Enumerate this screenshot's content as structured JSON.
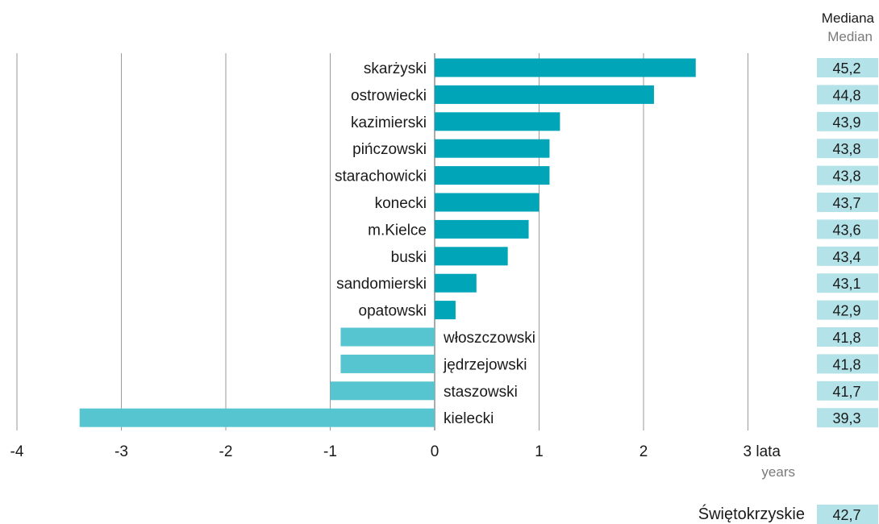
{
  "chart_data": {
    "type": "bar",
    "orientation": "horizontal",
    "categories": [
      "skarżyski",
      "ostrowiecki",
      "kazimierski",
      "pińczowski",
      "starachowicki",
      "konecki",
      "m.Kielce",
      "buski",
      "sandomierski",
      "opatowski",
      "włoszczowski",
      "jędrzejowski",
      "staszowski",
      "kielecki"
    ],
    "values": [
      2.5,
      2.1,
      1.2,
      1.1,
      1.1,
      1.0,
      0.9,
      0.7,
      0.4,
      0.2,
      -0.9,
      -0.9,
      -1.0,
      -3.4
    ],
    "medians": [
      "45,2",
      "44,8",
      "43,9",
      "43,8",
      "43,8",
      "43,7",
      "43,6",
      "43,4",
      "43,1",
      "42,9",
      "41,8",
      "41,8",
      "41,7",
      "39,3"
    ],
    "xlim": [
      -4,
      3
    ],
    "x_ticks": [
      "-4",
      "-3",
      "-2",
      "-1",
      "0",
      "1",
      "2",
      "3 lata"
    ],
    "x_unit_secondary": "years",
    "median_header": "Mediana",
    "median_header_secondary": "Median",
    "grid": true,
    "colors": {
      "positive": "#00a6b8",
      "negative": "#56c5cf",
      "median_box": "#b3e3e8",
      "grid": "#9a9a9a"
    },
    "region": {
      "name": "Świętokrzyskie",
      "median": "42,7"
    }
  }
}
